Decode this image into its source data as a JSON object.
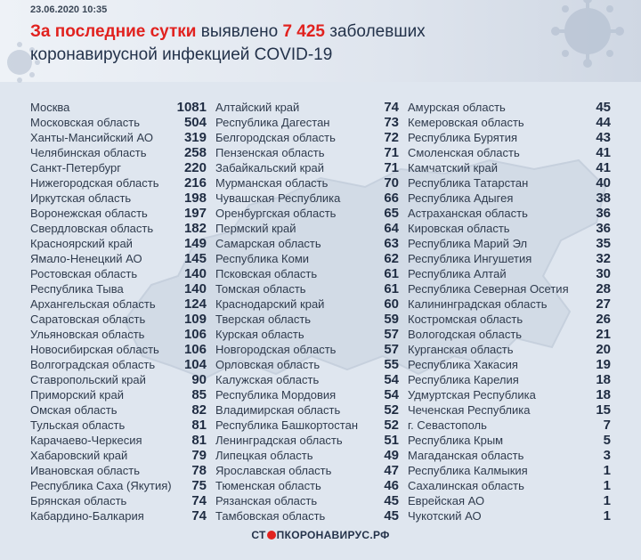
{
  "header": {
    "date": "23.06.2020 10:35",
    "line1_prefix": "За последние сутки",
    "line1_mid": " выявлено ",
    "line1_number": "7 425",
    "line1_suffix": " заболевших",
    "line2": "коронавирусной инфекцией COVID-19"
  },
  "columns": [
    [
      {
        "name": "Москва",
        "value": "1081"
      },
      {
        "name": "Московская область",
        "value": "504"
      },
      {
        "name": "Ханты-Мансийский АО",
        "value": "319"
      },
      {
        "name": "Челябинская область",
        "value": "258"
      },
      {
        "name": "Санкт-Петербург",
        "value": "220"
      },
      {
        "name": "Нижегородская область",
        "value": "216"
      },
      {
        "name": "Иркутская область",
        "value": "198"
      },
      {
        "name": "Воронежская область",
        "value": "197"
      },
      {
        "name": "Свердловская область",
        "value": "182"
      },
      {
        "name": "Красноярский край",
        "value": "149"
      },
      {
        "name": "Ямало-Ненецкий АО",
        "value": "145"
      },
      {
        "name": "Ростовская область",
        "value": "140"
      },
      {
        "name": "Республика Тыва",
        "value": "140"
      },
      {
        "name": "Архангельская область",
        "value": "124"
      },
      {
        "name": "Саратовская область",
        "value": "109"
      },
      {
        "name": "Ульяновская область",
        "value": "106"
      },
      {
        "name": "Новосибирская область",
        "value": "106"
      },
      {
        "name": "Волгоградская область",
        "value": "104"
      },
      {
        "name": "Ставропольский край",
        "value": "90"
      },
      {
        "name": "Приморский край",
        "value": "85"
      },
      {
        "name": "Омская область",
        "value": "82"
      },
      {
        "name": "Тульская область",
        "value": "81"
      },
      {
        "name": "Карачаево-Черкесия",
        "value": "81"
      },
      {
        "name": "Хабаровский край",
        "value": "79"
      },
      {
        "name": "Ивановская область",
        "value": "78"
      },
      {
        "name": "Республика Саха (Якутия)",
        "value": "75"
      },
      {
        "name": "Брянская область",
        "value": "74"
      },
      {
        "name": "Кабардино-Балкария",
        "value": "74"
      }
    ],
    [
      {
        "name": "Алтайский край",
        "value": "74"
      },
      {
        "name": "Республика Дагестан",
        "value": "73"
      },
      {
        "name": "Белгородская область",
        "value": "72"
      },
      {
        "name": "Пензенская область",
        "value": "71"
      },
      {
        "name": "Забайкальский край",
        "value": "71"
      },
      {
        "name": "Мурманская область",
        "value": "70"
      },
      {
        "name": "Чувашская Республика",
        "value": "66"
      },
      {
        "name": "Оренбургская область",
        "value": "65"
      },
      {
        "name": "Пермский край",
        "value": "64"
      },
      {
        "name": "Самарская область",
        "value": "63"
      },
      {
        "name": "Республика Коми",
        "value": "62"
      },
      {
        "name": "Псковская область",
        "value": "61"
      },
      {
        "name": "Томская область",
        "value": "61"
      },
      {
        "name": "Краснодарский край",
        "value": "60"
      },
      {
        "name": "Тверская область",
        "value": "59"
      },
      {
        "name": "Курская область",
        "value": "57"
      },
      {
        "name": "Новгородская область",
        "value": "57"
      },
      {
        "name": "Орловская область",
        "value": "55"
      },
      {
        "name": "Калужская область",
        "value": "54"
      },
      {
        "name": "Республика Мордовия",
        "value": "54"
      },
      {
        "name": "Владимирская область",
        "value": "52"
      },
      {
        "name": "Республика Башкортостан",
        "value": "52"
      },
      {
        "name": "Ленинградская область",
        "value": "51"
      },
      {
        "name": "Липецкая область",
        "value": "49"
      },
      {
        "name": "Ярославская область",
        "value": "47"
      },
      {
        "name": "Тюменская область",
        "value": "46"
      },
      {
        "name": "Рязанская область",
        "value": "45"
      },
      {
        "name": "Тамбовская область",
        "value": "45"
      }
    ],
    [
      {
        "name": "Амурская область",
        "value": "45"
      },
      {
        "name": "Кемеровская область",
        "value": "44"
      },
      {
        "name": "Республика Бурятия",
        "value": "43"
      },
      {
        "name": "Смоленская область",
        "value": "41"
      },
      {
        "name": "Камчатский край",
        "value": "41"
      },
      {
        "name": "Республика Татарстан",
        "value": "40"
      },
      {
        "name": "Республика Адыгея",
        "value": "38"
      },
      {
        "name": "Астраханская область",
        "value": "36"
      },
      {
        "name": "Кировская область",
        "value": "36"
      },
      {
        "name": "Республика Марий Эл",
        "value": "35"
      },
      {
        "name": "Республика Ингушетия",
        "value": "32"
      },
      {
        "name": "Республика Алтай",
        "value": "30"
      },
      {
        "name": "Республика Северная Осетия",
        "value": "28"
      },
      {
        "name": "Калининградская область",
        "value": "27"
      },
      {
        "name": "Костромская область",
        "value": "26"
      },
      {
        "name": "Вологодская область",
        "value": "21"
      },
      {
        "name": "Курганская область",
        "value": "20"
      },
      {
        "name": "Республика Хакасия",
        "value": "19"
      },
      {
        "name": "Республика Карелия",
        "value": "18"
      },
      {
        "name": "Удмуртская Республика",
        "value": "18"
      },
      {
        "name": "Чеченская Республика",
        "value": "15"
      },
      {
        "name": "г. Севастополь",
        "value": "7"
      },
      {
        "name": "Республика Крым",
        "value": "5"
      },
      {
        "name": "Магаданская область",
        "value": "3"
      },
      {
        "name": "Республика Калмыкия",
        "value": "1"
      },
      {
        "name": "Сахалинская область",
        "value": "1"
      },
      {
        "name": "Еврейская АО",
        "value": "1"
      },
      {
        "name": "Чукотский АО",
        "value": "1"
      }
    ]
  ],
  "footer": {
    "logo_prefix": "СТ",
    "logo_suffix": "ПКОРОНАВИРУС.РФ"
  },
  "colors": {
    "accent": "#e1221f",
    "text": "#23324a",
    "background": "#dfe6ef"
  },
  "icons": [
    "virus-icon",
    "russia-map-icon",
    "stop-icon"
  ]
}
